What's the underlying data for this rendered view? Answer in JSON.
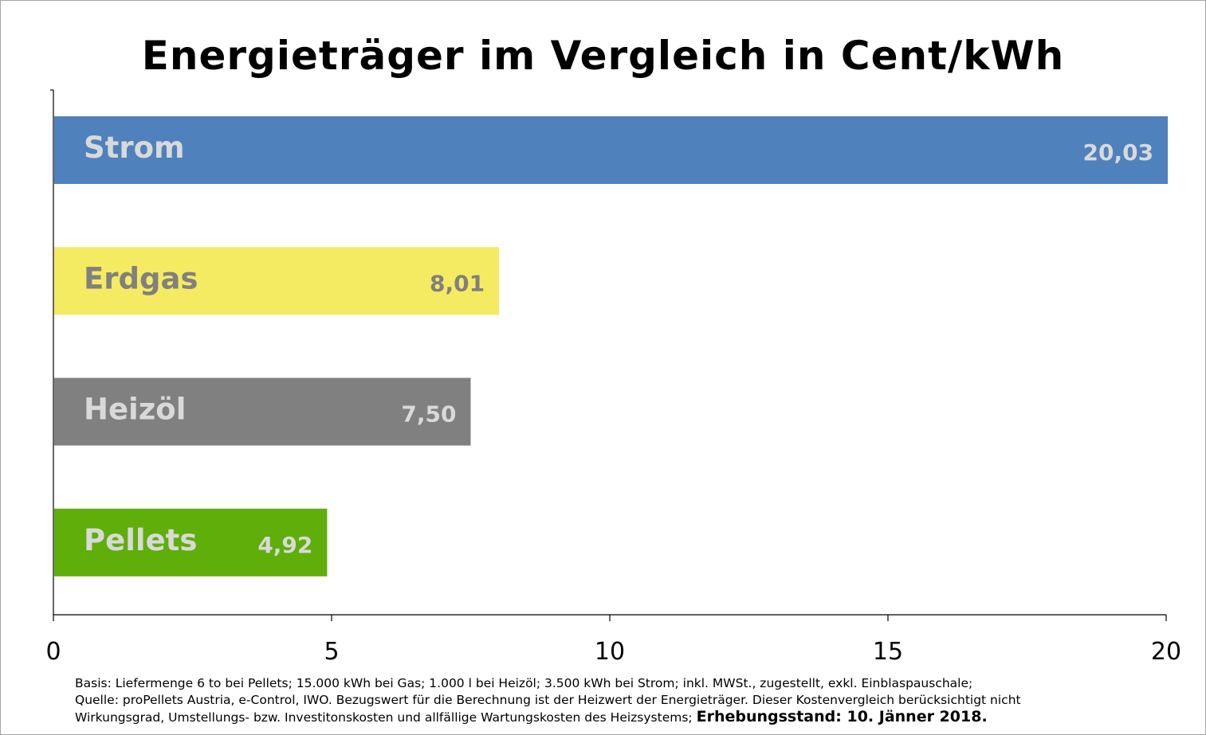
{
  "chart_data": {
    "type": "bar",
    "orientation": "horizontal",
    "title": "Energieträger im Vergleich in Cent/kWh",
    "categories": [
      "Strom",
      "Erdgas",
      "Heizöl",
      "Pellets"
    ],
    "values": [
      20.03,
      8.01,
      7.5,
      4.92
    ],
    "value_labels": [
      "20,03",
      "8,01",
      "7,50",
      "4,92"
    ],
    "colors": [
      "#4f81bd",
      "#f5eb62",
      "#808080",
      "#5fae0a"
    ],
    "label_colors": [
      "#d9d9d9",
      "#808080",
      "#d9d9d9",
      "#d9d9d9"
    ],
    "xlim": [
      0,
      20
    ],
    "xticks": [
      0,
      5,
      10,
      15,
      20
    ],
    "xtick_labels": [
      "0",
      "5",
      "10",
      "15",
      "20"
    ],
    "grid": false,
    "legend": "none"
  },
  "footnote": {
    "line1": "Basis: Liefermenge 6 to bei Pellets; 15.000 kWh bei Gas; 1.000 l bei Heizöl; 3.500 kWh bei Strom; inkl. MWSt., zugestellt, exkl. Einblaspauschale;",
    "line2": "Quelle: proPellets Austria, e-Control, IWO. Bezugswert für die Berechnung ist der Heizwert der Energieträger.  Dieser Kostenvergleich berücksichtigt nicht",
    "line3": "Wirkungsgrad, Umstellungs- bzw. Investitonskosten und allfällige Wartungskosten des Heizsystems;",
    "date": "Erhebungsstand: 10. Jänner 2018."
  }
}
